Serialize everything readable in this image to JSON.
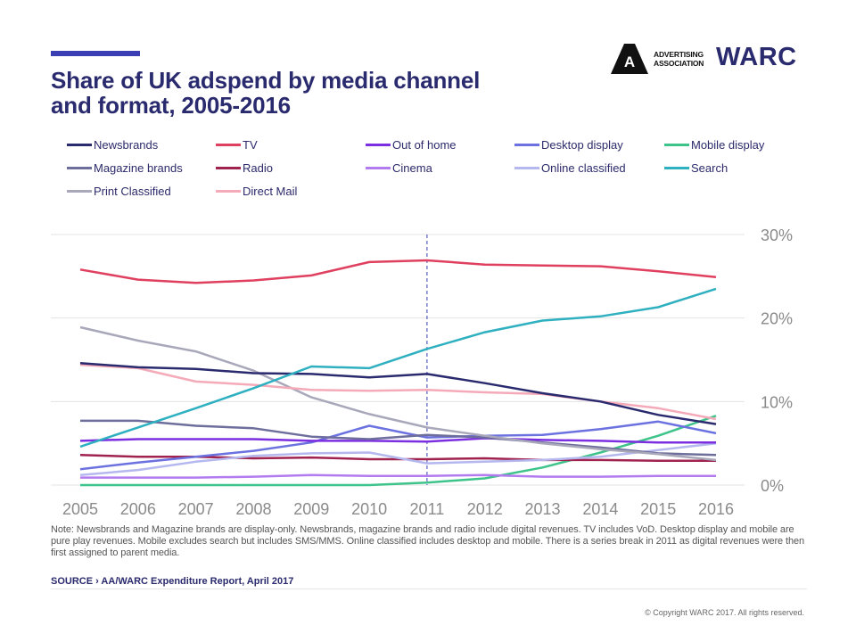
{
  "header": {
    "title_line1": "Share of UK adspend by media channel",
    "title_line2": "and format, 2005-2016",
    "aa_logo_letter": "A",
    "aa_logo_line1": "ADVERTISING",
    "aa_logo_line2": "ASSOCIATION",
    "warc_logo": "WARC"
  },
  "footer": {
    "note": "Note: Newsbrands and Magazine brands are display-only. Newsbrands, magazine brands and radio include digital revenues. TV includes VoD. Desktop display and mobile are pure play revenues. Mobile excludes search but includes SMS/MMS. Online classified includes desktop and mobile. There is a series break in 2011 as digital revenues were then first assigned to parent media.",
    "source": "SOURCE › AA/WARC Expenditure Report, April 2017",
    "copyright": "© Copyright  WARC 2017.  All rights reserved."
  },
  "colors": {
    "title": "#2a2a6e",
    "accent_bar": "#3b3fb3",
    "grid": "#e3e3e3",
    "axis_text": "#8a8a8a",
    "series_break": "#3b3fb3"
  },
  "chart_data": {
    "type": "line",
    "title": "Share of UK adspend by media channel and format, 2005-2016",
    "xlabel": "",
    "ylabel": "",
    "x": [
      "2005",
      "2006",
      "2007",
      "2008",
      "2009",
      "2010",
      "2011",
      "2012",
      "2013",
      "2014",
      "2015",
      "2016"
    ],
    "ylim": [
      0,
      30
    ],
    "yticks": [
      "0%",
      "10%",
      "20%",
      "30%"
    ],
    "y_axis_side": "right",
    "grid": true,
    "legend_position": "top",
    "series_break_at": "2011",
    "series": [
      {
        "name": "Newsbrands",
        "color": "#2a2a6e",
        "values": [
          14.6,
          14.1,
          13.9,
          13.4,
          13.3,
          12.9,
          13.3,
          12.2,
          11.0,
          10.0,
          8.4,
          7.3
        ]
      },
      {
        "name": "TV",
        "color": "#e0405f",
        "values": [
          25.8,
          24.6,
          24.2,
          24.5,
          25.1,
          26.7,
          26.9,
          26.4,
          26.3,
          26.2,
          25.6,
          24.9
        ]
      },
      {
        "name": "Out of home",
        "color": "#7b2fe0",
        "values": [
          5.3,
          5.5,
          5.5,
          5.5,
          5.3,
          5.3,
          5.2,
          5.6,
          5.4,
          5.3,
          5.1,
          5.1
        ]
      },
      {
        "name": "Desktop display",
        "color": "#6b72e0",
        "values": [
          1.9,
          2.7,
          3.4,
          4.1,
          5.1,
          7.1,
          5.7,
          5.9,
          6.0,
          6.7,
          7.6,
          6.2
        ]
      },
      {
        "name": "Mobile display",
        "color": "#3ec48a",
        "values": [
          0.0,
          0.0,
          0.0,
          0.0,
          0.0,
          0.0,
          0.3,
          0.8,
          2.1,
          3.9,
          5.9,
          8.3
        ]
      },
      {
        "name": "Magazine brands",
        "color": "#6e6e9c",
        "values": [
          7.7,
          7.7,
          7.1,
          6.8,
          5.8,
          5.5,
          6.0,
          5.7,
          5.1,
          4.5,
          3.8,
          3.6
        ]
      },
      {
        "name": "Radio",
        "color": "#a0224f",
        "values": [
          3.6,
          3.4,
          3.4,
          3.2,
          3.3,
          3.1,
          3.1,
          3.2,
          3.0,
          3.0,
          2.9,
          2.9
        ]
      },
      {
        "name": "Cinema",
        "color": "#b27bef",
        "values": [
          0.9,
          0.9,
          0.9,
          1.0,
          1.2,
          1.1,
          1.1,
          1.2,
          1.0,
          1.0,
          1.1,
          1.1
        ]
      },
      {
        "name": "Online classified",
        "color": "#b4b8ef",
        "values": [
          1.2,
          1.8,
          2.8,
          3.5,
          3.8,
          3.9,
          2.6,
          2.8,
          3.0,
          3.4,
          4.2,
          5.0
        ]
      },
      {
        "name": "Search",
        "color": "#2fb0c0",
        "values": [
          4.6,
          6.9,
          9.2,
          11.6,
          14.2,
          14.0,
          16.3,
          18.3,
          19.7,
          20.2,
          21.3,
          23.5
        ]
      },
      {
        "name": "Print Classified",
        "color": "#a8a8ba",
        "values": [
          18.9,
          17.3,
          16.0,
          13.7,
          10.5,
          8.5,
          6.9,
          5.9,
          5.0,
          4.3,
          3.7,
          3.0
        ]
      },
      {
        "name": "Direct Mail",
        "color": "#f4aab8",
        "values": [
          14.4,
          14.0,
          12.4,
          12.0,
          11.4,
          11.3,
          11.4,
          11.1,
          10.9,
          10.0,
          9.2,
          7.9
        ]
      }
    ]
  }
}
